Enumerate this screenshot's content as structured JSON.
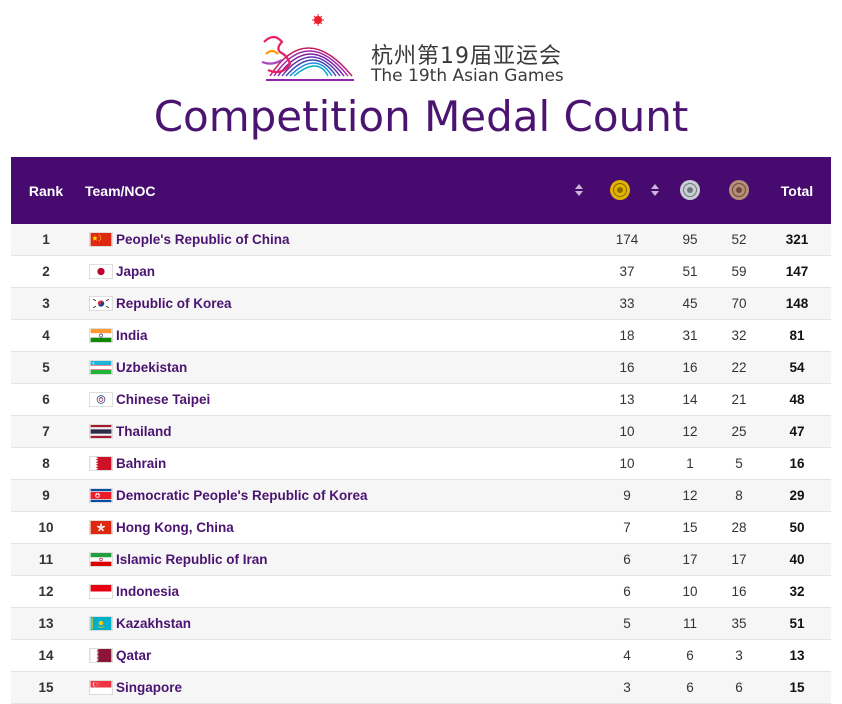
{
  "header": {
    "title_cn": "杭州第19届亚运会",
    "title_en": "The 19th Asian Games",
    "page_title": "Competition Medal Count",
    "accent_color": "#470a6e",
    "logo_icon": "hangzhou-asian-games-emblem"
  },
  "table": {
    "columns": {
      "rank": "Rank",
      "team": "Team/NOC",
      "gold_icon": "gold-medal-icon",
      "silver_icon": "silver-medal-icon",
      "bronze_icon": "bronze-medal-icon",
      "total": "Total"
    },
    "rows": [
      {
        "rank": "1",
        "team": "People's Republic of China",
        "flag": "CHN",
        "gold": "174",
        "silver": "95",
        "bronze": "52",
        "total": "321"
      },
      {
        "rank": "2",
        "team": "Japan",
        "flag": "JPN",
        "gold": "37",
        "silver": "51",
        "bronze": "59",
        "total": "147"
      },
      {
        "rank": "3",
        "team": "Republic of Korea",
        "flag": "KOR",
        "gold": "33",
        "silver": "45",
        "bronze": "70",
        "total": "148"
      },
      {
        "rank": "4",
        "team": "India",
        "flag": "IND",
        "gold": "18",
        "silver": "31",
        "bronze": "32",
        "total": "81"
      },
      {
        "rank": "5",
        "team": "Uzbekistan",
        "flag": "UZB",
        "gold": "16",
        "silver": "16",
        "bronze": "22",
        "total": "54"
      },
      {
        "rank": "6",
        "team": "Chinese Taipei",
        "flag": "TPE",
        "gold": "13",
        "silver": "14",
        "bronze": "21",
        "total": "48"
      },
      {
        "rank": "7",
        "team": "Thailand",
        "flag": "THA",
        "gold": "10",
        "silver": "12",
        "bronze": "25",
        "total": "47"
      },
      {
        "rank": "8",
        "team": "Bahrain",
        "flag": "BRN",
        "gold": "10",
        "silver": "1",
        "bronze": "5",
        "total": "16"
      },
      {
        "rank": "9",
        "team": "Democratic People's Republic of Korea",
        "flag": "PRK",
        "gold": "9",
        "silver": "12",
        "bronze": "8",
        "total": "29"
      },
      {
        "rank": "10",
        "team": "Hong Kong, China",
        "flag": "HKG",
        "gold": "7",
        "silver": "15",
        "bronze": "28",
        "total": "50"
      },
      {
        "rank": "11",
        "team": "Islamic Republic of Iran",
        "flag": "IRI",
        "gold": "6",
        "silver": "17",
        "bronze": "17",
        "total": "40"
      },
      {
        "rank": "12",
        "team": "Indonesia",
        "flag": "INA",
        "gold": "6",
        "silver": "10",
        "bronze": "16",
        "total": "32"
      },
      {
        "rank": "13",
        "team": "Kazakhstan",
        "flag": "KAZ",
        "gold": "5",
        "silver": "11",
        "bronze": "35",
        "total": "51"
      },
      {
        "rank": "14",
        "team": "Qatar",
        "flag": "QAT",
        "gold": "4",
        "silver": "6",
        "bronze": "3",
        "total": "13"
      },
      {
        "rank": "15",
        "team": "Singapore",
        "flag": "SGP",
        "gold": "3",
        "silver": "6",
        "bronze": "6",
        "total": "15"
      }
    ]
  }
}
